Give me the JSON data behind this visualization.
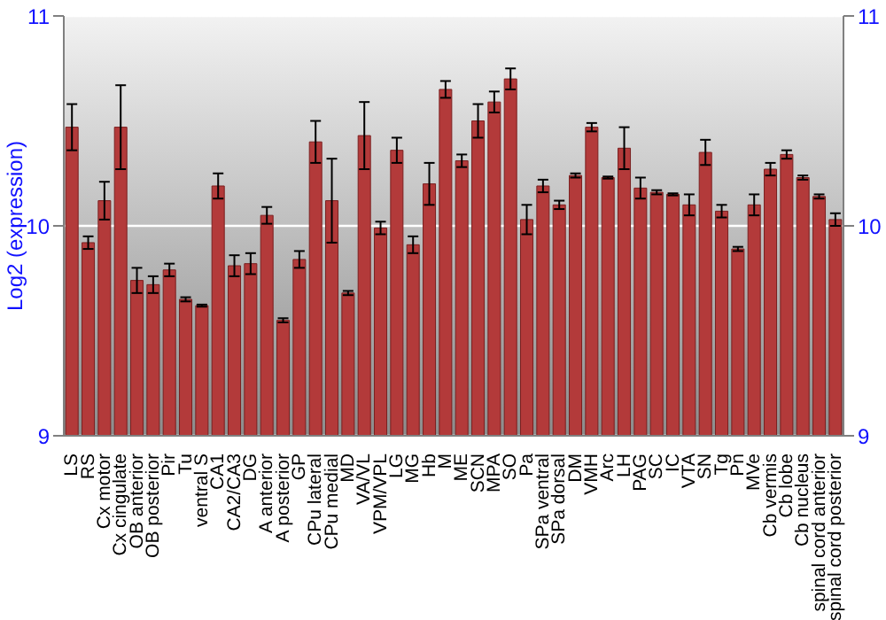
{
  "chart_data": {
    "type": "bar",
    "ylabel": "Log2 (expression)",
    "categories": [
      "LS",
      "RS",
      "Cx motor",
      "Cx cingulate",
      "OB anterior",
      "OB posterior",
      "Pir",
      "Tu",
      "ventral S",
      "CA1",
      "CA2/CA3",
      "DG",
      "A anterior",
      "A posterior",
      "GP",
      "CPu lateral",
      "CPu medial",
      "MD",
      "VA/VL",
      "VPM/VPL",
      "LG",
      "MG",
      "Hb",
      "M",
      "ME",
      "SCN",
      "MPA",
      "SO",
      "Pa",
      "SPa ventral",
      "SPa dorsal",
      "DM",
      "VMH",
      "Arc",
      "LH",
      "PAG",
      "SC",
      "IC",
      "VTA",
      "SN",
      "Tg",
      "Pn",
      "MVe",
      "Cb vermis",
      "Cb lobe",
      "Cb nucleus",
      "spinal cord anterior",
      "spinal cord posterior"
    ],
    "values": [
      10.47,
      9.92,
      10.12,
      10.47,
      9.74,
      9.72,
      9.79,
      9.65,
      9.62,
      10.19,
      9.81,
      9.82,
      10.05,
      9.55,
      9.84,
      10.4,
      10.12,
      9.68,
      10.43,
      9.99,
      10.36,
      9.91,
      10.2,
      10.65,
      10.31,
      10.5,
      10.59,
      10.7,
      10.03,
      10.19,
      10.1,
      10.24,
      10.47,
      10.23,
      10.37,
      10.18,
      10.16,
      10.15,
      10.1,
      10.35,
      10.07,
      9.89,
      10.1,
      10.27,
      10.34,
      10.23,
      10.14,
      10.03
    ],
    "errors": [
      0.11,
      0.03,
      0.09,
      0.2,
      0.06,
      0.04,
      0.03,
      0.01,
      0.005,
      0.06,
      0.05,
      0.05,
      0.04,
      0.01,
      0.04,
      0.1,
      0.2,
      0.01,
      0.16,
      0.03,
      0.06,
      0.04,
      0.1,
      0.04,
      0.03,
      0.08,
      0.05,
      0.05,
      0.07,
      0.03,
      0.02,
      0.01,
      0.02,
      0.005,
      0.1,
      0.05,
      0.01,
      0.005,
      0.05,
      0.06,
      0.03,
      0.01,
      0.05,
      0.03,
      0.02,
      0.01,
      0.01,
      0.03
    ],
    "color": "#b33a3a",
    "ylim": [
      9,
      11
    ],
    "yticks": [
      9,
      10,
      11
    ],
    "y2lim": [
      9,
      11
    ],
    "y2ticks": [
      9,
      10,
      11
    ],
    "grid": "y"
  }
}
